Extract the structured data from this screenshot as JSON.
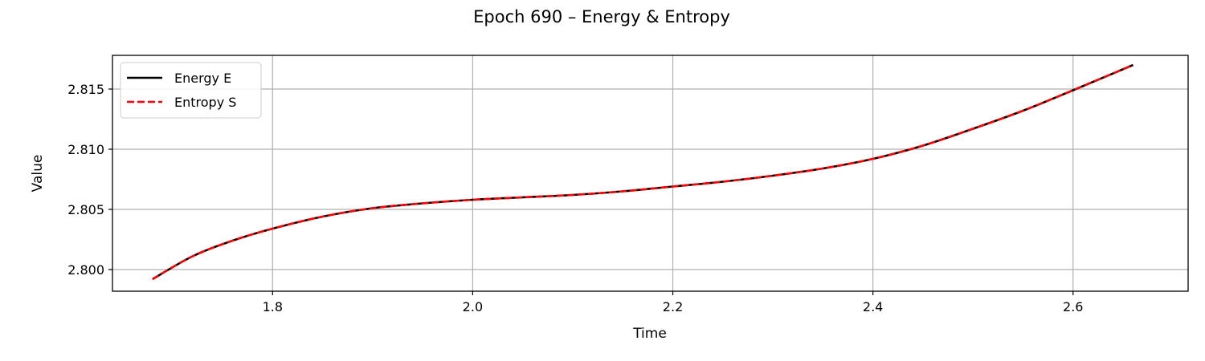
{
  "chart_data": {
    "type": "line",
    "title": "Epoch 690 – Energy & Entropy",
    "xlabel": "Time",
    "ylabel": "Value",
    "xlim": [
      1.64,
      2.715
    ],
    "ylim": [
      2.7982,
      2.8178
    ],
    "xticks": [
      1.8,
      2.0,
      2.2,
      2.4,
      2.6
    ],
    "xtick_labels": [
      "1.8",
      "2.0",
      "2.2",
      "2.4",
      "2.6"
    ],
    "yticks": [
      2.8,
      2.805,
      2.81,
      2.815
    ],
    "ytick_labels": [
      "2.800",
      "2.805",
      "2.810",
      "2.815"
    ],
    "grid": true,
    "legend_position": "top-left",
    "series": [
      {
        "name": "Energy E",
        "color": "#000000",
        "style": "solid",
        "x": [
          1.68,
          1.72,
          1.76,
          1.8,
          1.85,
          1.9,
          1.95,
          2.0,
          2.05,
          2.1,
          2.15,
          2.2,
          2.25,
          2.3,
          2.35,
          2.4,
          2.45,
          2.5,
          2.55,
          2.6,
          2.66
        ],
        "y": [
          2.7992,
          2.8011,
          2.8024,
          2.8034,
          2.8044,
          2.8051,
          2.8055,
          2.8058,
          2.806,
          2.8062,
          2.8065,
          2.8069,
          2.8073,
          2.8078,
          2.8084,
          2.8092,
          2.8103,
          2.8117,
          2.8132,
          2.8149,
          2.817
        ]
      },
      {
        "name": "Entropy S",
        "color": "#ff0000",
        "style": "dashed",
        "x": [
          1.68,
          1.72,
          1.76,
          1.8,
          1.85,
          1.9,
          1.95,
          2.0,
          2.05,
          2.1,
          2.15,
          2.2,
          2.25,
          2.3,
          2.35,
          2.4,
          2.45,
          2.5,
          2.55,
          2.6,
          2.66
        ],
        "y": [
          2.7992,
          2.8011,
          2.8024,
          2.8034,
          2.8044,
          2.8051,
          2.8055,
          2.8058,
          2.806,
          2.8062,
          2.8065,
          2.8069,
          2.8073,
          2.8078,
          2.8084,
          2.8092,
          2.8103,
          2.8117,
          2.8132,
          2.8149,
          2.817
        ]
      }
    ]
  }
}
